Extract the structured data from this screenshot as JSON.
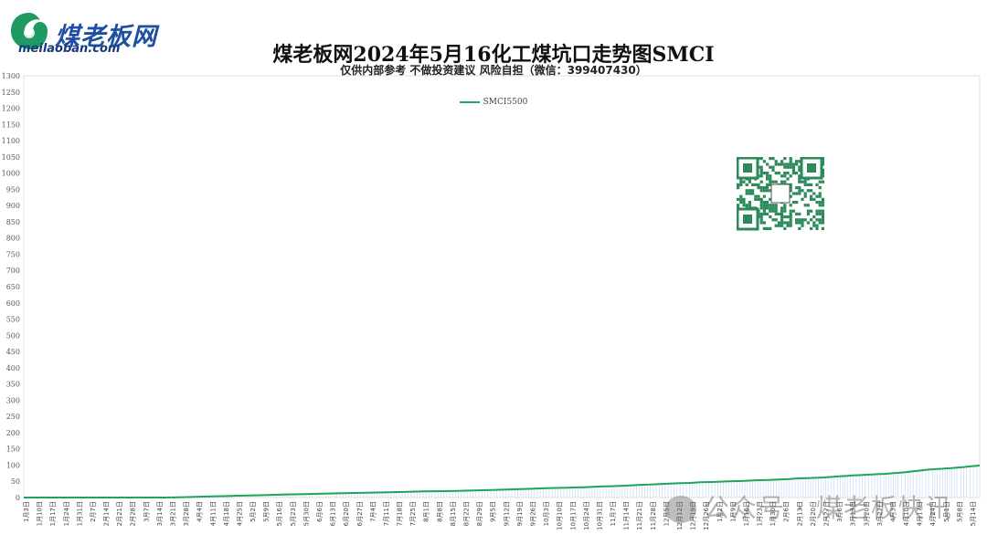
{
  "brand": {
    "logo_text": "煤老板网",
    "logo_sub": "meilaoban.com"
  },
  "header": {
    "title": "煤老板网2024年5月16化工煤坑口走势图SMCI",
    "subtitle": "仅供内部参考 不做投资建议 风险自担（微信：399407430）"
  },
  "watermark": "公众号 · 煤老板快讯",
  "colors": {
    "SMCI5500": "#1fa45a",
    "SMCI5800": "#f2b824",
    "SMCI6000": "#7aa3e8",
    "fill": "#c9dbf6"
  },
  "chart_data": {
    "type": "line",
    "title": "煤老板网2024年5月16化工煤坑口走势图SMCI",
    "ylim": [
      0,
      1300
    ],
    "yticks": [
      0,
      50,
      100,
      150,
      200,
      250,
      300,
      350,
      400,
      450,
      500,
      550,
      600,
      650,
      700,
      750,
      800,
      850,
      900,
      950,
      1000,
      1050,
      1100,
      1150,
      1200,
      1250,
      1300
    ],
    "legend_position": "top-center",
    "xticklabels": [
      "1月3日",
      "1月10日",
      "1月17日",
      "1月24日",
      "1月31日",
      "2月7日",
      "2月14日",
      "2月21日",
      "2月28日",
      "3月7日",
      "3月14日",
      "3月21日",
      "3月28日",
      "4月4日",
      "4月11日",
      "4月18日",
      "4月25日",
      "5月2日",
      "5月9日",
      "5月16日",
      "5月23日",
      "5月30日",
      "6月6日",
      "6月13日",
      "6月20日",
      "6月27日",
      "7月4日",
      "7月11日",
      "7月18日",
      "7月25日",
      "8月1日",
      "8月8日",
      "8月15日",
      "8月22日",
      "8月29日",
      "9月5日",
      "9月12日",
      "9月19日",
      "9月26日",
      "10月3日",
      "10月10日",
      "10月17日",
      "10月24日",
      "10月31日",
      "11月7日",
      "11月14日",
      "11月21日",
      "11月28日",
      "12月5日",
      "12月12日",
      "12月19日",
      "12月26日",
      "1月2日",
      "1月9日",
      "1月16日",
      "1月23日",
      "1月30日",
      "2月6日",
      "2月13日",
      "2月20日",
      "2月27日",
      "3月6日",
      "3月13日",
      "3月20日",
      "3月27日",
      "4月3日",
      "4月10日",
      "4月17日",
      "4月24日",
      "5月1日",
      "5月8日",
      "5月14日"
    ],
    "series": [
      {
        "name": "SMCI5500",
        "color": "#1fa45a",
        "points": [
          [
            0,
            0
          ],
          [
            24.9,
            0
          ],
          [
            28.3,
            1
          ],
          [
            32.2,
            3
          ],
          [
            36.5,
            5
          ],
          [
            41.5,
            7
          ],
          [
            45.5,
            9
          ],
          [
            50.3,
            11
          ],
          [
            55.2,
            13
          ],
          [
            60.3,
            15
          ],
          [
            66.1,
            17
          ],
          [
            70.3,
            19
          ],
          [
            75.5,
            20
          ],
          [
            79.1,
            22
          ],
          [
            83.8,
            24
          ],
          [
            87.5,
            26
          ],
          [
            89.4,
            27
          ],
          [
            92.0,
            29
          ],
          [
            95.6,
            30
          ],
          [
            99.1,
            32
          ],
          [
            101.5,
            34
          ],
          [
            103.5,
            35
          ],
          [
            106.3,
            37
          ],
          [
            108.4,
            39
          ],
          [
            110.3,
            40
          ],
          [
            112.4,
            42
          ],
          [
            115.0,
            44
          ],
          [
            117.2,
            45
          ],
          [
            119.0,
            47
          ],
          [
            121.7,
            48
          ],
          [
            124.1,
            50
          ],
          [
            126.5,
            51
          ],
          [
            128.3,
            53
          ],
          [
            131.1,
            54
          ],
          [
            133.4,
            56
          ],
          [
            134.8,
            57
          ],
          [
            136.3,
            59
          ],
          [
            138.1,
            60
          ],
          [
            139.9,
            61
          ],
          [
            140.8,
            62
          ],
          [
            141.6,
            63
          ],
          [
            142.6,
            64
          ],
          [
            143.3,
            65
          ],
          [
            144.2,
            66
          ],
          [
            145.0,
            67
          ],
          [
            146.0,
            68
          ],
          [
            147.1,
            69
          ],
          [
            148.1,
            70
          ],
          [
            149.3,
            71
          ],
          [
            150.3,
            72
          ],
          [
            151.4,
            73
          ],
          [
            152.3,
            74
          ],
          [
            153.1,
            75
          ],
          [
            153.9,
            76
          ],
          [
            154.5,
            77
          ],
          [
            155.2,
            78
          ],
          [
            155.7,
            79
          ],
          [
            156.1,
            80
          ],
          [
            156.6,
            81
          ],
          [
            157.2,
            82
          ],
          [
            157.7,
            83
          ],
          [
            158.2,
            84
          ],
          [
            158.8,
            85
          ],
          [
            159.3,
            86
          ],
          [
            160.0,
            87
          ],
          [
            160.8,
            88
          ],
          [
            161.8,
            89
          ],
          [
            162.6,
            90
          ],
          [
            163.4,
            91
          ],
          [
            164.3,
            92
          ],
          [
            165.0,
            93
          ],
          [
            165.5,
            94
          ],
          [
            166.0,
            95
          ],
          [
            166.6,
            96
          ],
          [
            167.2,
            97
          ],
          [
            167.8,
            98
          ],
          [
            168.3,
            99
          ]
        ]
      }
    ]
  }
}
